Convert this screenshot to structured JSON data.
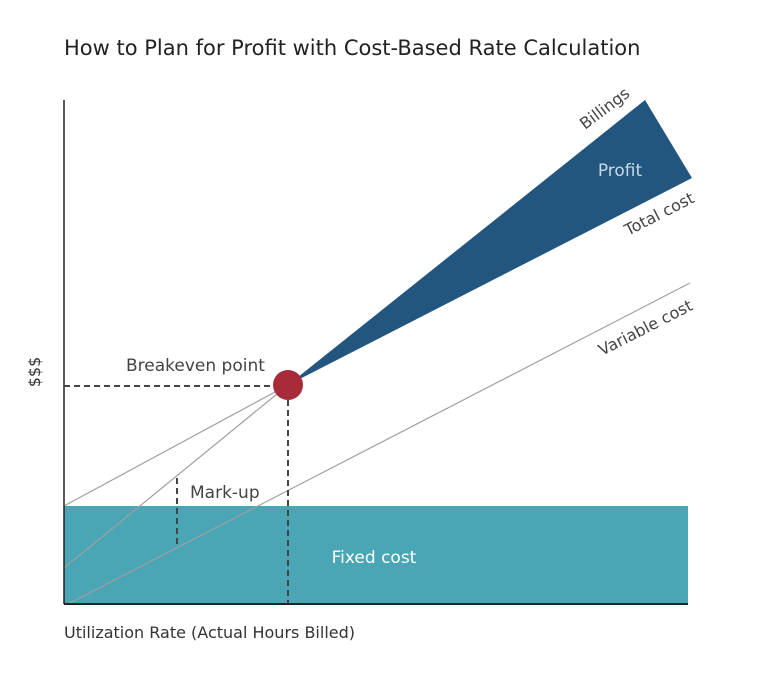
{
  "title": "How to Plan for Profit with Cost-Based Rate Calculation",
  "y_axis_label": "$$$",
  "x_axis_label": "Utilization Rate (Actual Hours Billed)",
  "labels": {
    "billings": "Billings",
    "profit": "Profit",
    "total_cost": "Total cost",
    "variable_cost": "Variable cost",
    "breakeven_point": "Breakeven point",
    "mark_up": "Mark-up",
    "fixed_cost": "Fixed cost"
  },
  "colors": {
    "fixed_cost": "#4aa5b4",
    "profit": "#22567f",
    "breakeven": "#a82b3a",
    "lines": "#a0a0a0",
    "dashed": "#444444",
    "text": "#333333"
  }
}
